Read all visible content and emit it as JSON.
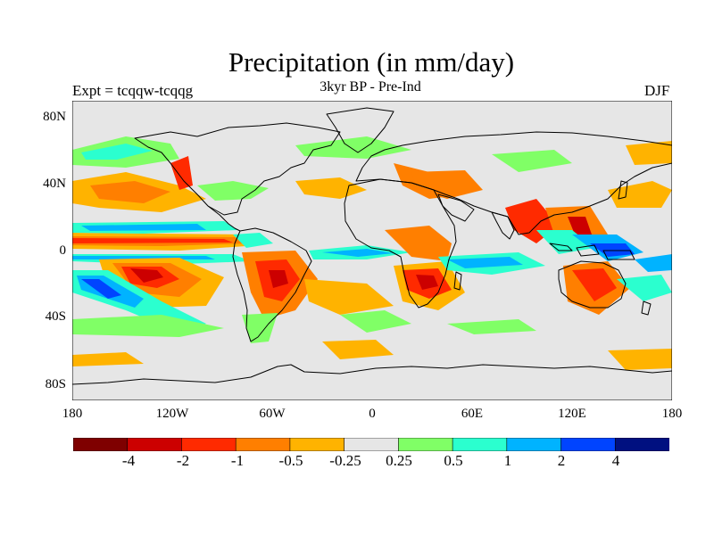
{
  "title": "Precipitation (in mm/day)",
  "experiment_label": "Expt = tcqqw-tcqqg",
  "subtitle": "3kyr BP - Pre-Ind",
  "season": "DJF",
  "colors": {
    "ocean_fill": "#e6e6e6",
    "coastline": "#000000"
  },
  "axes": {
    "y_ticks": [
      "80N",
      "40N",
      "0",
      "40S",
      "80S"
    ],
    "x_ticks": [
      "180",
      "120W",
      "60W",
      "0",
      "60E",
      "120E",
      "180"
    ]
  },
  "colorbar": {
    "colors": [
      "#7f0000",
      "#cc0000",
      "#ff2a00",
      "#ff7f00",
      "#ffb300",
      "#e6e6e6",
      "#80ff66",
      "#2bffcf",
      "#00b3ff",
      "#0044ff",
      "#001080"
    ],
    "labels": [
      "-4",
      "-2",
      "-1",
      "-0.5",
      "-0.25",
      "0.25",
      "0.5",
      "1",
      "2",
      "4"
    ]
  },
  "map": {
    "projection": "cylindrical equidistant",
    "lon_range": [
      -180,
      180
    ],
    "lat_range": [
      -90,
      90
    ]
  }
}
